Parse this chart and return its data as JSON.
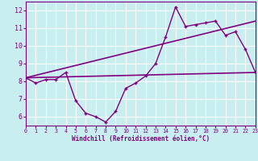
{
  "background_color": "#c8eef0",
  "grid_color": "#ffffff",
  "line_color": "#800080",
  "xlabel": "Windchill (Refroidissement éolien,°C)",
  "xlim": [
    0,
    23
  ],
  "ylim": [
    5.5,
    12.5
  ],
  "yticks": [
    6,
    7,
    8,
    9,
    10,
    11,
    12
  ],
  "xticks": [
    0,
    1,
    2,
    3,
    4,
    5,
    6,
    7,
    8,
    9,
    10,
    11,
    12,
    13,
    14,
    15,
    16,
    17,
    18,
    19,
    20,
    21,
    22,
    23
  ],
  "main_x": [
    0,
    1,
    2,
    3,
    4,
    5,
    6,
    7,
    8,
    9,
    10,
    11,
    12,
    13,
    14,
    15,
    16,
    17,
    18,
    19,
    20,
    21,
    22,
    23
  ],
  "main_y": [
    8.2,
    7.9,
    8.1,
    8.1,
    8.5,
    6.9,
    6.2,
    6.0,
    5.7,
    6.3,
    7.6,
    7.9,
    8.3,
    9.0,
    10.5,
    12.2,
    11.1,
    11.2,
    11.3,
    11.4,
    10.6,
    10.8,
    9.8,
    8.5
  ],
  "flat_line_x": [
    0,
    23
  ],
  "flat_line_y": [
    8.2,
    8.5
  ],
  "rising_line_x": [
    0,
    23
  ],
  "rising_line_y": [
    8.2,
    11.4
  ]
}
